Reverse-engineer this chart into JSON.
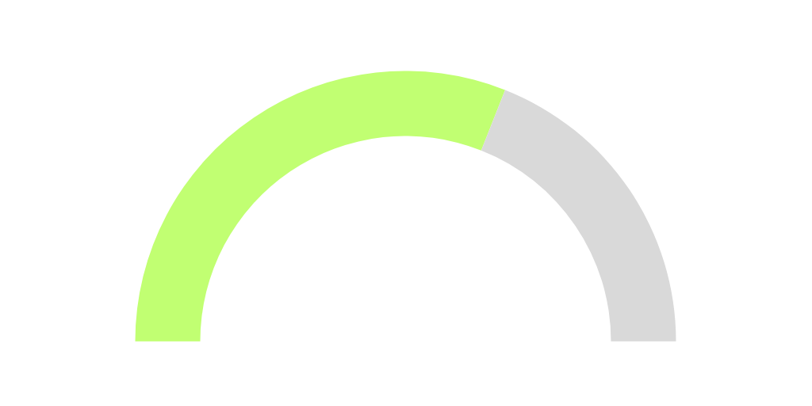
{
  "chart_data": {
    "type": "donut",
    "categories": [
      null,
      null
    ],
    "values": [
      62,
      38
    ],
    "colors": [
      "#c1ff72",
      "#d9d9d9"
    ]
  }
}
